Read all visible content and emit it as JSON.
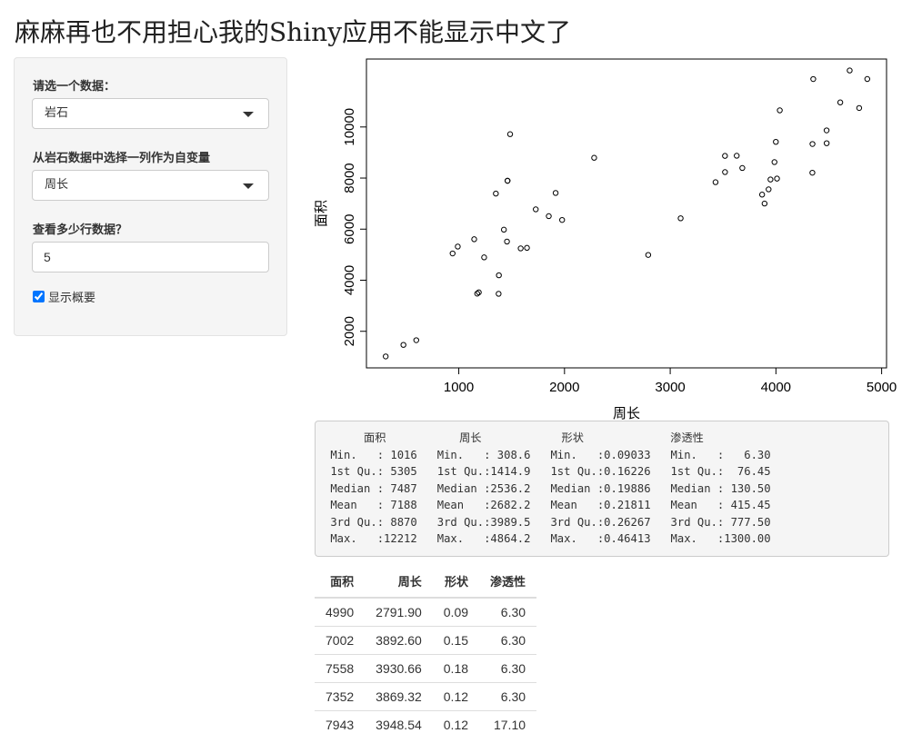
{
  "header": {
    "title": "麻麻再也不用担心我的Shiny应用不能显示中文了"
  },
  "sidebar": {
    "dataset_label": "请选一个数据：",
    "dataset_value": "岩石",
    "column_label": "从岩石数据中选择一列作为自变量",
    "column_value": "周长",
    "rows_label": "查看多少行数据？",
    "rows_value": "5",
    "summary_checkbox_label": "显示概要",
    "summary_checked": true
  },
  "chart_data": {
    "type": "scatter",
    "xlabel": "周长",
    "ylabel": "面积",
    "x": [
      2791.9,
      3892.6,
      3930.66,
      3869.32,
      3948.54,
      4010.15,
      4345.75,
      4344.75,
      3682.04,
      3098.65,
      4480.05,
      3986.24,
      4036.54,
      3518.04,
      3999.37,
      3629.07,
      4608.66,
      4787.62,
      4864.22,
      4479.41,
      3428.74,
      4353.14,
      4697.65,
      3518.44,
      1977.39,
      1379.35,
      1916.24,
      1585.42,
      1851.21,
      1239.66,
      1728.14,
      1461.06,
      1426.76,
      990.388,
      1350.76,
      1461.06,
      1376.7,
      476.322,
      1189.46,
      1644.96,
      941.543,
      308.642,
      1145.69,
      2280.49,
      1174.11,
      597.808,
      1455.88,
      1485.58
    ],
    "values": [
      4990,
      7002,
      7558,
      7352,
      7943,
      7979,
      9333,
      8209,
      8393,
      6425,
      9364,
      8624,
      10651,
      8868,
      9417,
      8874,
      10962,
      10743,
      11878,
      9867,
      7838,
      11876,
      12212,
      8233,
      6360,
      4193,
      7416,
      5246,
      6509,
      4895,
      6775,
      7894,
      5980,
      5318,
      7392,
      7894,
      3469,
      1468,
      3524,
      5267,
      5048,
      1016,
      5605,
      8793,
      3475,
      1651,
      5514,
      9718
    ],
    "xlim": [
      126.4,
      5046.4
    ],
    "ylim": [
      568,
      12660
    ],
    "xticks": [
      1000,
      2000,
      3000,
      4000,
      5000
    ],
    "yticks": [
      2000,
      4000,
      6000,
      8000,
      10000
    ],
    "color": "#000000"
  },
  "summary": {
    "lines": [
      "      面积           周长            形状             渗透性      ",
      " Min.   : 1016   Min.   : 308.6   Min.   :0.09033   Min.   :   6.30  ",
      " 1st Qu.: 5305   1st Qu.:1414.9   1st Qu.:0.16226   1st Qu.:  76.45  ",
      " Median : 7487   Median :2536.2   Median :0.19886   Median : 130.50  ",
      " Mean   : 7188   Mean   :2682.2   Mean   :0.21811   Mean   : 415.45  ",
      " 3rd Qu.: 8870   3rd Qu.:3989.5   3rd Qu.:0.26267   3rd Qu.: 777.50  ",
      " Max.   :12212   Max.   :4864.2   Max.   :0.46413   Max.   :1300.00  "
    ]
  },
  "table": {
    "header": [
      "面积",
      "周长",
      "形状",
      "渗透性"
    ],
    "rows": [
      [
        "4990",
        "2791.90",
        "0.09",
        "6.30"
      ],
      [
        "7002",
        "3892.60",
        "0.15",
        "6.30"
      ],
      [
        "7558",
        "3930.66",
        "0.18",
        "6.30"
      ],
      [
        "7352",
        "3869.32",
        "0.12",
        "6.30"
      ],
      [
        "7943",
        "3948.54",
        "0.12",
        "17.10"
      ]
    ]
  }
}
